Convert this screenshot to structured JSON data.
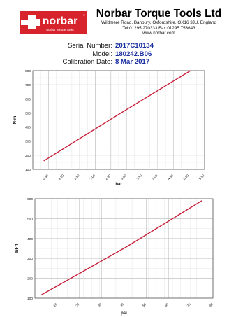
{
  "header": {
    "logo_text": "norbar",
    "logo_subtext": "Norbar Torque Tools",
    "company_name": "Norbar Torque Tools Ltd",
    "address_line": "Wildmere Road, Banbury, Oxfordshire, OX16 3JU, England",
    "phone_line": "Tel:01295 270333   Fax:01295 753643",
    "web_line": "www.norbar.com"
  },
  "certificate": {
    "serial_label": "Serial Number:",
    "serial_value": "2017C10134",
    "model_label": "Model:",
    "model_value": "180242.B06",
    "date_label": "Calibration Date:",
    "date_value": "8 Mar 2017"
  },
  "colors": {
    "logo_red": "#d7232b",
    "line_red": "#c8203a",
    "value_blue": "#1a2fa0"
  },
  "chart_data": [
    {
      "type": "line",
      "xlabel": "bar",
      "ylabel": "N·m",
      "xlim": [
        0,
        5.5
      ],
      "ylim": [
        100,
        800
      ],
      "xticks": [
        "0.50",
        "1.00",
        "1.50",
        "2.00",
        "2.50",
        "3.00",
        "3.50",
        "4.00",
        "4.50",
        "5.00",
        "5.50"
      ],
      "yticks": [
        "100",
        "200",
        "300",
        "400",
        "500",
        "600",
        "700",
        "800"
      ],
      "grid": true,
      "series": [
        {
          "x": [
            0.35,
            2.75,
            5.05
          ],
          "y": [
            160,
            490,
            800
          ]
        }
      ]
    },
    {
      "type": "line",
      "xlabel": "psi",
      "ylabel": "lbf·ft",
      "xlim": [
        0,
        80
      ],
      "ylim": [
        100,
        600
      ],
      "xticks": [
        "10",
        "20",
        "30",
        "40",
        "50",
        "60",
        "70",
        "80"
      ],
      "yticks": [
        "100",
        "200",
        "300",
        "400",
        "500",
        "600"
      ],
      "grid": true,
      "series": [
        {
          "x": [
            3,
            41,
            75
          ],
          "y": [
            117,
            357,
            590
          ]
        }
      ]
    }
  ]
}
